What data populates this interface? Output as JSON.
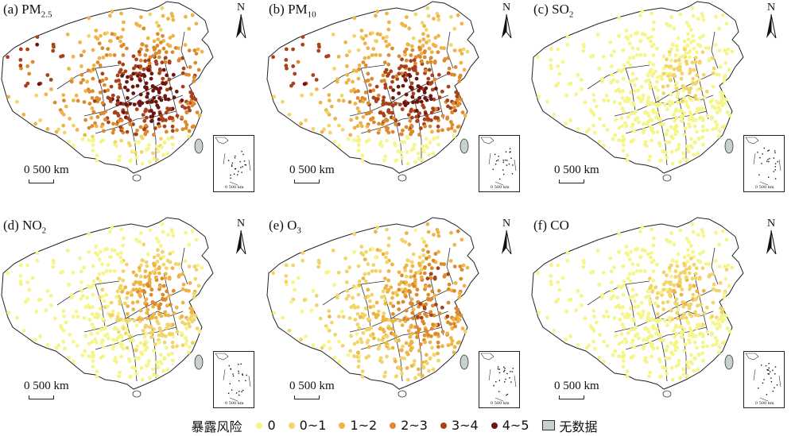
{
  "panels": [
    {
      "label": "(a) PM",
      "sub": "2.5",
      "profile": "pm25"
    },
    {
      "label": "(b) PM",
      "sub": "10",
      "profile": "pm10"
    },
    {
      "label": "(c) SO",
      "sub": "2",
      "profile": "so2"
    },
    {
      "label": "(d) NO",
      "sub": "2",
      "profile": "no2"
    },
    {
      "label": "(e) O",
      "sub": "3",
      "profile": "o3"
    },
    {
      "label": "(f) CO",
      "sub": "",
      "profile": "co"
    }
  ],
  "north_label": "N",
  "scale_label": "0  500 km",
  "inset_scale_label": "0  500 km",
  "legend": {
    "title": "暴露风险",
    "items": [
      {
        "label": "0",
        "color": "#f5f58a"
      },
      {
        "label": "0~1",
        "color": "#f2d56a"
      },
      {
        "label": "1~2",
        "color": "#eeb446"
      },
      {
        "label": "2~3",
        "color": "#dd8a2e"
      },
      {
        "label": "3~4",
        "color": "#a8421a"
      },
      {
        "label": "4~5",
        "color": "#6b1410"
      }
    ],
    "nodata_label": "无数据",
    "nodata_color": "#c9d1cf"
  }
}
